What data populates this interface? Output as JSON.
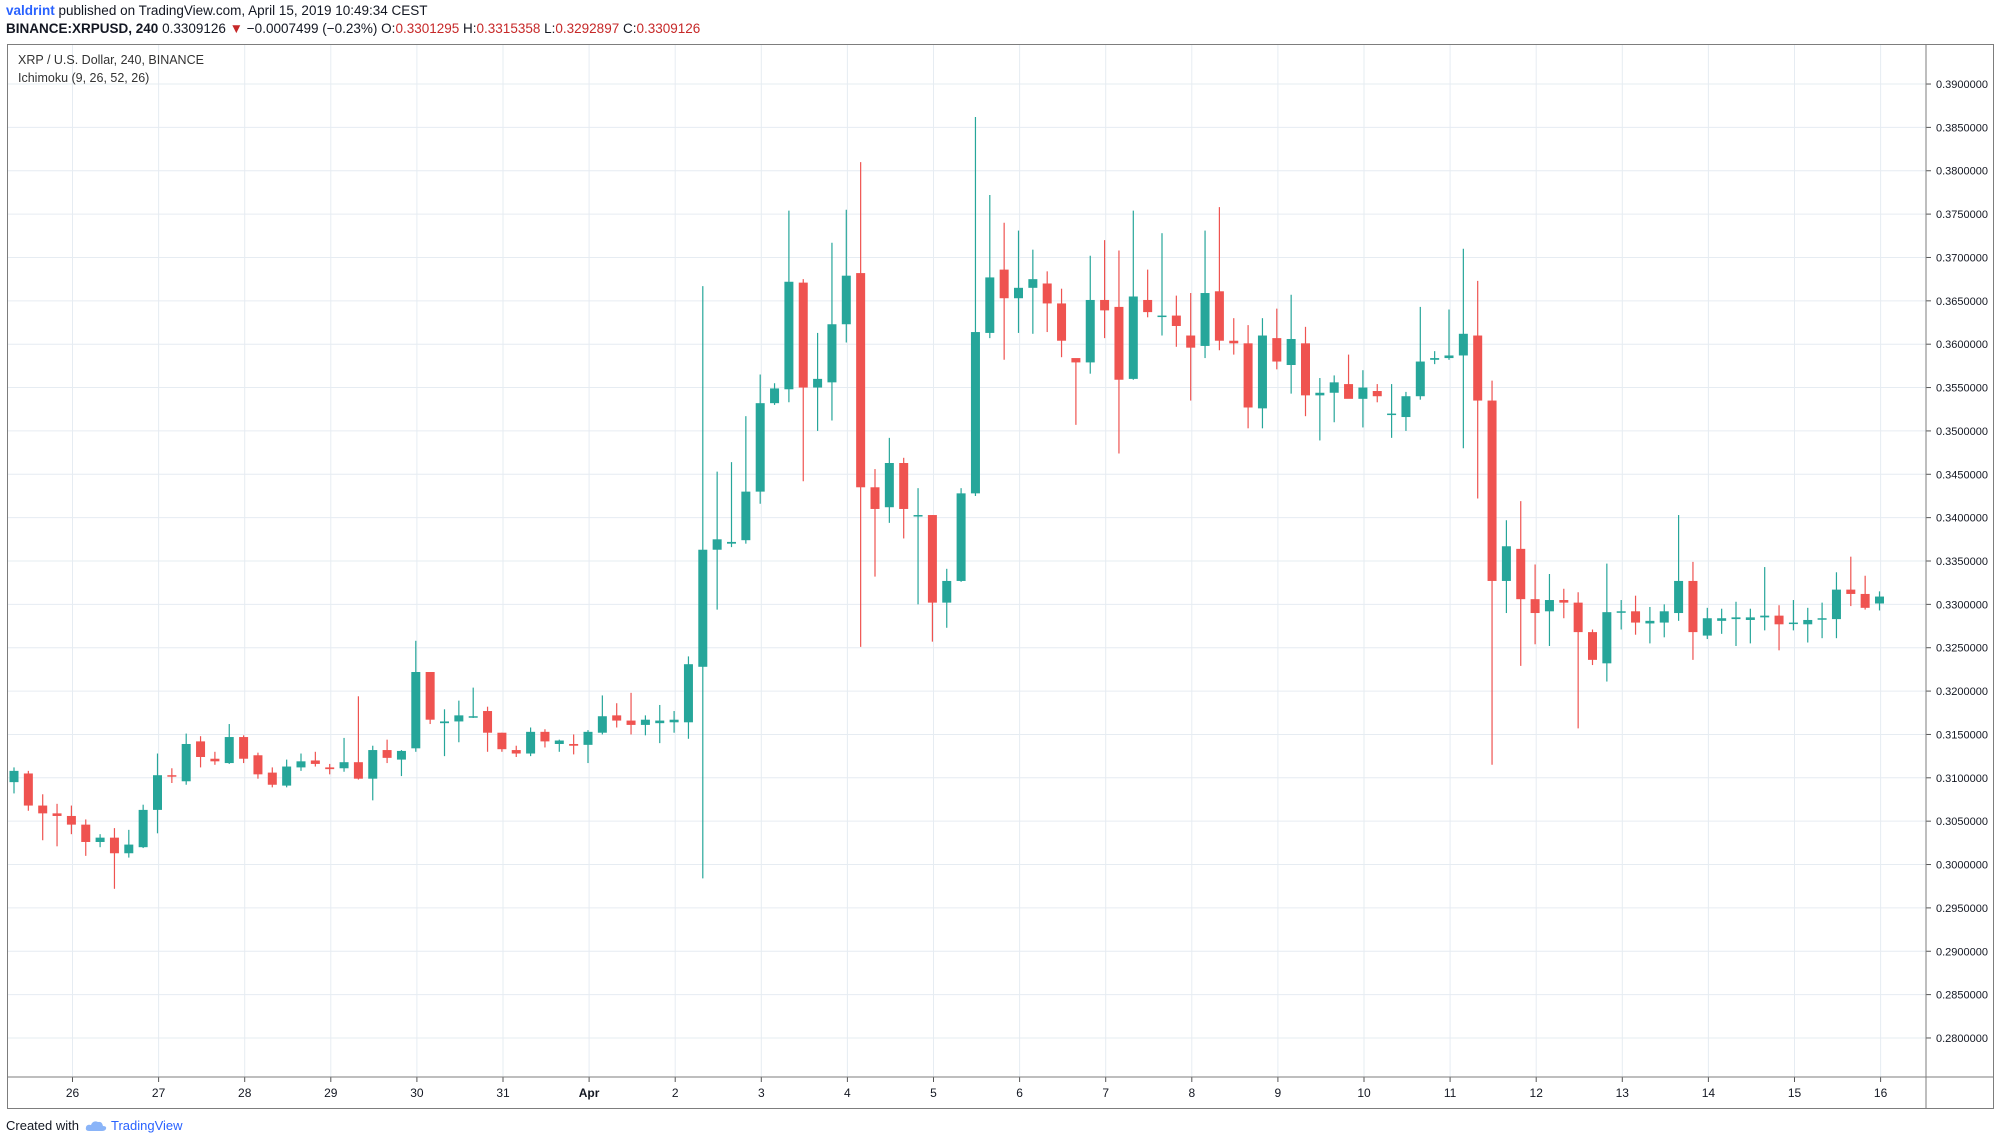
{
  "header": {
    "user": "valdrint",
    "published": "published on TradingView.com, April 15, 2019 10:49:34 CEST",
    "symbol": "BINANCE:XRPUSD, 240",
    "last": "0.3309126",
    "change": "−0.0007499 (−0.23%)",
    "o_label": "O:",
    "o_value": "0.3301295",
    "h_label": "H:",
    "h_value": "0.3315358",
    "l_label": "L:",
    "l_value": "0.3292897",
    "c_label": "C:",
    "c_value": "0.3309126"
  },
  "legend": {
    "line1": "XRP / U.S. Dollar, 240, BINANCE",
    "line2": "Ichimoku (9, 26, 52, 26)"
  },
  "footer": {
    "created": "Created with",
    "brand": "TradingView"
  },
  "colors": {
    "up": "#26a69a",
    "down": "#ef5350",
    "grid": "#e6ecf2",
    "axis": "#131722"
  },
  "chart_data": {
    "type": "candlestick",
    "x_tick_labels": [
      "26",
      "27",
      "28",
      "29",
      "30",
      "31",
      "Apr",
      "2",
      "3",
      "4",
      "5",
      "6",
      "7",
      "8",
      "9",
      "10",
      "11",
      "12",
      "13",
      "14",
      "15",
      "16"
    ],
    "y_tick_labels": [
      "0.3900000",
      "0.3850000",
      "0.3800000",
      "0.3750000",
      "0.3700000",
      "0.3650000",
      "0.3600000",
      "0.3550000",
      "0.3500000",
      "0.3450000",
      "0.3400000",
      "0.3350000",
      "0.3300000",
      "0.3250000",
      "0.3200000",
      "0.3150000",
      "0.3100000",
      "0.3050000",
      "0.3000000",
      "0.2950000",
      "0.2900000",
      "0.2850000",
      "0.2800000"
    ],
    "ylim": [
      0.2755,
      0.3945
    ],
    "interval_hours": 4,
    "candles_ohlc": [
      [
        0.3095,
        0.3112,
        0.3082,
        0.3108
      ],
      [
        0.3105,
        0.3108,
        0.3062,
        0.3068
      ],
      [
        0.3068,
        0.3081,
        0.3028,
        0.3059
      ],
      [
        0.3059,
        0.307,
        0.3021,
        0.3056
      ],
      [
        0.3056,
        0.3068,
        0.3035,
        0.3046
      ],
      [
        0.3046,
        0.3052,
        0.301,
        0.3026
      ],
      [
        0.3026,
        0.3035,
        0.302,
        0.3031
      ],
      [
        0.3031,
        0.3042,
        0.2972,
        0.3013
      ],
      [
        0.3013,
        0.304,
        0.3008,
        0.3023
      ],
      [
        0.302,
        0.3069,
        0.3019,
        0.3063
      ],
      [
        0.3063,
        0.3128,
        0.3036,
        0.3103
      ],
      [
        0.3103,
        0.3111,
        0.3094,
        0.3102
      ],
      [
        0.3096,
        0.3151,
        0.3092,
        0.3139
      ],
      [
        0.3142,
        0.3148,
        0.3112,
        0.3124
      ],
      [
        0.3122,
        0.313,
        0.3115,
        0.3119
      ],
      [
        0.3117,
        0.3162,
        0.3116,
        0.3147
      ],
      [
        0.3147,
        0.3149,
        0.3117,
        0.3122
      ],
      [
        0.3126,
        0.3129,
        0.3099,
        0.3104
      ],
      [
        0.3106,
        0.3112,
        0.3089,
        0.3092
      ],
      [
        0.3091,
        0.3121,
        0.3089,
        0.3113
      ],
      [
        0.3112,
        0.3128,
        0.3108,
        0.3119
      ],
      [
        0.312,
        0.313,
        0.3113,
        0.3116
      ],
      [
        0.3112,
        0.3116,
        0.3104,
        0.311
      ],
      [
        0.3111,
        0.3146,
        0.3107,
        0.3118
      ],
      [
        0.3118,
        0.3194,
        0.3098,
        0.3099
      ],
      [
        0.3099,
        0.3137,
        0.3074,
        0.3132
      ],
      [
        0.3132,
        0.3144,
        0.3117,
        0.3123
      ],
      [
        0.3121,
        0.3132,
        0.3102,
        0.3131
      ],
      [
        0.3134,
        0.3258,
        0.313,
        0.3222
      ],
      [
        0.3222,
        0.322,
        0.3162,
        0.3167
      ],
      [
        0.3163,
        0.3179,
        0.3125,
        0.3165
      ],
      [
        0.3165,
        0.3189,
        0.3141,
        0.3172
      ],
      [
        0.3171,
        0.3204,
        0.3169,
        0.3171
      ],
      [
        0.3177,
        0.3182,
        0.313,
        0.3152
      ],
      [
        0.3152,
        0.3152,
        0.313,
        0.3133
      ],
      [
        0.3132,
        0.3137,
        0.3124,
        0.3128
      ],
      [
        0.3128,
        0.3158,
        0.3125,
        0.3153
      ],
      [
        0.3153,
        0.3156,
        0.3135,
        0.3142
      ],
      [
        0.3139,
        0.3144,
        0.313,
        0.3143
      ],
      [
        0.3139,
        0.315,
        0.3127,
        0.3137
      ],
      [
        0.3138,
        0.3155,
        0.3117,
        0.3153
      ],
      [
        0.3152,
        0.3195,
        0.315,
        0.3171
      ],
      [
        0.3172,
        0.3186,
        0.3158,
        0.3166
      ],
      [
        0.3166,
        0.3198,
        0.315,
        0.3161
      ],
      [
        0.3161,
        0.3172,
        0.3149,
        0.3167
      ],
      [
        0.3163,
        0.3184,
        0.314,
        0.3166
      ],
      [
        0.3164,
        0.3177,
        0.3152,
        0.3167
      ],
      [
        0.3164,
        0.324,
        0.3145,
        0.3231
      ],
      [
        0.3228,
        0.3667,
        0.2984,
        0.3363
      ],
      [
        0.3363,
        0.3453,
        0.3294,
        0.3375
      ],
      [
        0.337,
        0.3464,
        0.3366,
        0.3372
      ],
      [
        0.3374,
        0.3517,
        0.337,
        0.343
      ],
      [
        0.343,
        0.3565,
        0.3416,
        0.3532
      ],
      [
        0.3532,
        0.3555,
        0.353,
        0.3549
      ],
      [
        0.3548,
        0.3754,
        0.3533,
        0.3672
      ],
      [
        0.3671,
        0.3675,
        0.3442,
        0.355
      ],
      [
        0.355,
        0.3613,
        0.35,
        0.356
      ],
      [
        0.3556,
        0.3717,
        0.3512,
        0.3623
      ],
      [
        0.3623,
        0.3755,
        0.3602,
        0.3679
      ],
      [
        0.3682,
        0.381,
        0.3251,
        0.3435
      ],
      [
        0.3435,
        0.3456,
        0.3332,
        0.341
      ],
      [
        0.3412,
        0.3492,
        0.3394,
        0.3463
      ],
      [
        0.3463,
        0.3469,
        0.3376,
        0.341
      ],
      [
        0.3403,
        0.3434,
        0.33,
        0.3403
      ],
      [
        0.3403,
        0.3403,
        0.3257,
        0.3302
      ],
      [
        0.3302,
        0.3341,
        0.3273,
        0.3327
      ],
      [
        0.3327,
        0.3434,
        0.3326,
        0.3428
      ],
      [
        0.3428,
        0.3862,
        0.3425,
        0.3614
      ],
      [
        0.3613,
        0.3772,
        0.3607,
        0.3677
      ],
      [
        0.3686,
        0.374,
        0.3582,
        0.3653
      ],
      [
        0.3653,
        0.3731,
        0.3613,
        0.3665
      ],
      [
        0.3665,
        0.3709,
        0.3612,
        0.3675
      ],
      [
        0.367,
        0.3684,
        0.3614,
        0.3647
      ],
      [
        0.3647,
        0.3664,
        0.3585,
        0.3604
      ],
      [
        0.3584,
        0.3583,
        0.3507,
        0.3579
      ],
      [
        0.3579,
        0.3702,
        0.3566,
        0.3651
      ],
      [
        0.3651,
        0.372,
        0.3607,
        0.3639
      ],
      [
        0.3643,
        0.3708,
        0.3474,
        0.3559
      ],
      [
        0.356,
        0.3754,
        0.3559,
        0.3655
      ],
      [
        0.3651,
        0.3686,
        0.3631,
        0.3637
      ],
      [
        0.3632,
        0.3728,
        0.361,
        0.3633
      ],
      [
        0.3633,
        0.3656,
        0.3597,
        0.3621
      ],
      [
        0.361,
        0.3659,
        0.3535,
        0.3596
      ],
      [
        0.3598,
        0.3731,
        0.3584,
        0.3659
      ],
      [
        0.3661,
        0.3758,
        0.3593,
        0.3604
      ],
      [
        0.3604,
        0.363,
        0.3588,
        0.3601
      ],
      [
        0.3601,
        0.3622,
        0.3503,
        0.3527
      ],
      [
        0.3526,
        0.363,
        0.3503,
        0.361
      ],
      [
        0.3607,
        0.3641,
        0.3571,
        0.358
      ],
      [
        0.3576,
        0.3657,
        0.3543,
        0.3606
      ],
      [
        0.3601,
        0.362,
        0.3517,
        0.3541
      ],
      [
        0.3541,
        0.3561,
        0.3489,
        0.3544
      ],
      [
        0.3544,
        0.3564,
        0.351,
        0.3556
      ],
      [
        0.3554,
        0.3588,
        0.3541,
        0.3537
      ],
      [
        0.3537,
        0.357,
        0.3504,
        0.355
      ],
      [
        0.3546,
        0.3554,
        0.3533,
        0.354
      ],
      [
        0.3519,
        0.3554,
        0.3492,
        0.352
      ],
      [
        0.3516,
        0.3545,
        0.35,
        0.354
      ],
      [
        0.354,
        0.3643,
        0.3536,
        0.358
      ],
      [
        0.3582,
        0.3592,
        0.3577,
        0.3584
      ],
      [
        0.3584,
        0.364,
        0.3582,
        0.3587
      ],
      [
        0.3587,
        0.371,
        0.348,
        0.3612
      ],
      [
        0.361,
        0.3673,
        0.3422,
        0.3535
      ],
      [
        0.3535,
        0.3558,
        0.3115,
        0.3327
      ],
      [
        0.3327,
        0.3397,
        0.329,
        0.3367
      ],
      [
        0.3364,
        0.3419,
        0.3229,
        0.3306
      ],
      [
        0.3306,
        0.3346,
        0.3254,
        0.329
      ],
      [
        0.3292,
        0.3335,
        0.3252,
        0.3305
      ],
      [
        0.3305,
        0.3318,
        0.3284,
        0.3302
      ],
      [
        0.3302,
        0.3314,
        0.3157,
        0.3268
      ],
      [
        0.3268,
        0.3271,
        0.323,
        0.3236
      ],
      [
        0.3232,
        0.3347,
        0.3211,
        0.3291
      ],
      [
        0.3291,
        0.3305,
        0.3271,
        0.3292
      ],
      [
        0.3292,
        0.331,
        0.3265,
        0.3279
      ],
      [
        0.3278,
        0.3297,
        0.3255,
        0.3281
      ],
      [
        0.3279,
        0.33,
        0.3262,
        0.3292
      ],
      [
        0.329,
        0.3403,
        0.3281,
        0.3327
      ],
      [
        0.3327,
        0.3349,
        0.3236,
        0.3268
      ],
      [
        0.3264,
        0.3296,
        0.326,
        0.3284
      ],
      [
        0.3281,
        0.3295,
        0.3266,
        0.3284
      ],
      [
        0.3283,
        0.3303,
        0.3252,
        0.3285
      ],
      [
        0.3282,
        0.3295,
        0.3255,
        0.3285
      ],
      [
        0.3285,
        0.3343,
        0.327,
        0.3287
      ],
      [
        0.3287,
        0.3299,
        0.3247,
        0.3277
      ],
      [
        0.3278,
        0.3305,
        0.327,
        0.3279
      ],
      [
        0.3277,
        0.3296,
        0.3256,
        0.3282
      ],
      [
        0.3283,
        0.3302,
        0.3261,
        0.3284
      ],
      [
        0.3283,
        0.3337,
        0.3261,
        0.3317
      ],
      [
        0.3317,
        0.3355,
        0.3298,
        0.3312
      ],
      [
        0.3312,
        0.3333,
        0.3294,
        0.3296
      ],
      [
        0.3301,
        0.3315,
        0.3293,
        0.3309
      ]
    ]
  }
}
